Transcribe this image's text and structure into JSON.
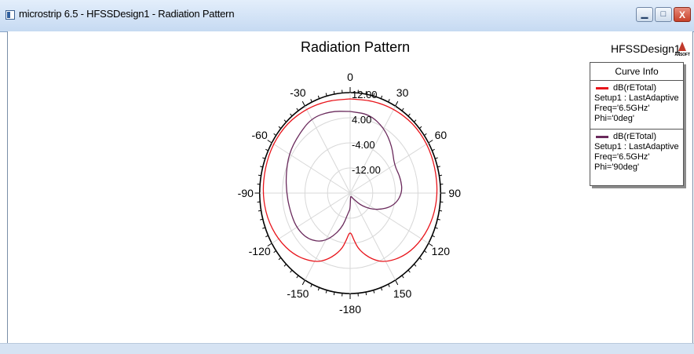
{
  "window": {
    "title": "microstrip 6.5 - HFSSDesign1 - Radiation Pattern",
    "minimize_glyph": "▁",
    "maximize_glyph": "□",
    "close_glyph": "X"
  },
  "header": {
    "chart_title": "Radiation Pattern",
    "design_name": "HFSSDesign1",
    "logo_text": "ANSOFT"
  },
  "legend": {
    "header": "Curve Info",
    "entries": [
      {
        "name": "dB(rETotal)",
        "setup": "Setup1 : LastAdaptive",
        "params": "Freq='6.5GHz' Phi='0deg'",
        "color": "#e8141b"
      },
      {
        "name": "dB(rETotal)",
        "setup": "Setup1 : LastAdaptive",
        "params": "Freq='6.5GHz' Phi='90deg'",
        "color": "#6a2a5c"
      }
    ]
  },
  "chart_data": {
    "type": "polar",
    "title": "Radiation Pattern",
    "angle_labels": [
      "0",
      "30",
      "60",
      "90",
      "120",
      "150",
      "-180",
      "-150",
      "-120",
      "-90",
      "-60",
      "-30"
    ],
    "radial_labels": [
      "12.00",
      "4.00",
      "-4.00",
      "-12.00"
    ],
    "radial_range": [
      -20,
      12
    ],
    "grid": true,
    "series": [
      {
        "name": "dB(rETotal) Freq='6.5GHz' Phi='0deg'",
        "color": "#e8141b",
        "theta": [
          0,
          15,
          30,
          45,
          60,
          75,
          90,
          105,
          120,
          135,
          150,
          160,
          170,
          175,
          180,
          185,
          190,
          200,
          210,
          225,
          240,
          255,
          270,
          285,
          300,
          315,
          330,
          345
        ],
        "r": [
          10,
          10.5,
          11,
          11.5,
          11.5,
          11.2,
          11,
          10.5,
          9.5,
          8,
          5.5,
          2.5,
          -1.5,
          -5,
          -8,
          -5,
          -1.5,
          2.5,
          5.5,
          8,
          9.5,
          10.5,
          11,
          11.2,
          11.5,
          11.5,
          11,
          10.5
        ]
      },
      {
        "name": "dB(rETotal) Freq='6.5GHz' Phi='90deg'",
        "color": "#6a2a5c",
        "theta": [
          0,
          15,
          30,
          45,
          60,
          75,
          90,
          105,
          120,
          135,
          150,
          165,
          175,
          180,
          185,
          195,
          210,
          225,
          240,
          255,
          270,
          285,
          300,
          315,
          330,
          345
        ],
        "r": [
          6,
          6,
          4,
          1,
          -2,
          -1.5,
          -1.5,
          -4,
          -9,
          -14,
          -18,
          -19,
          -18.5,
          -15,
          -14,
          -8,
          -2,
          1,
          2,
          2,
          2.5,
          3.5,
          5,
          6,
          7.5,
          7
        ]
      }
    ]
  }
}
